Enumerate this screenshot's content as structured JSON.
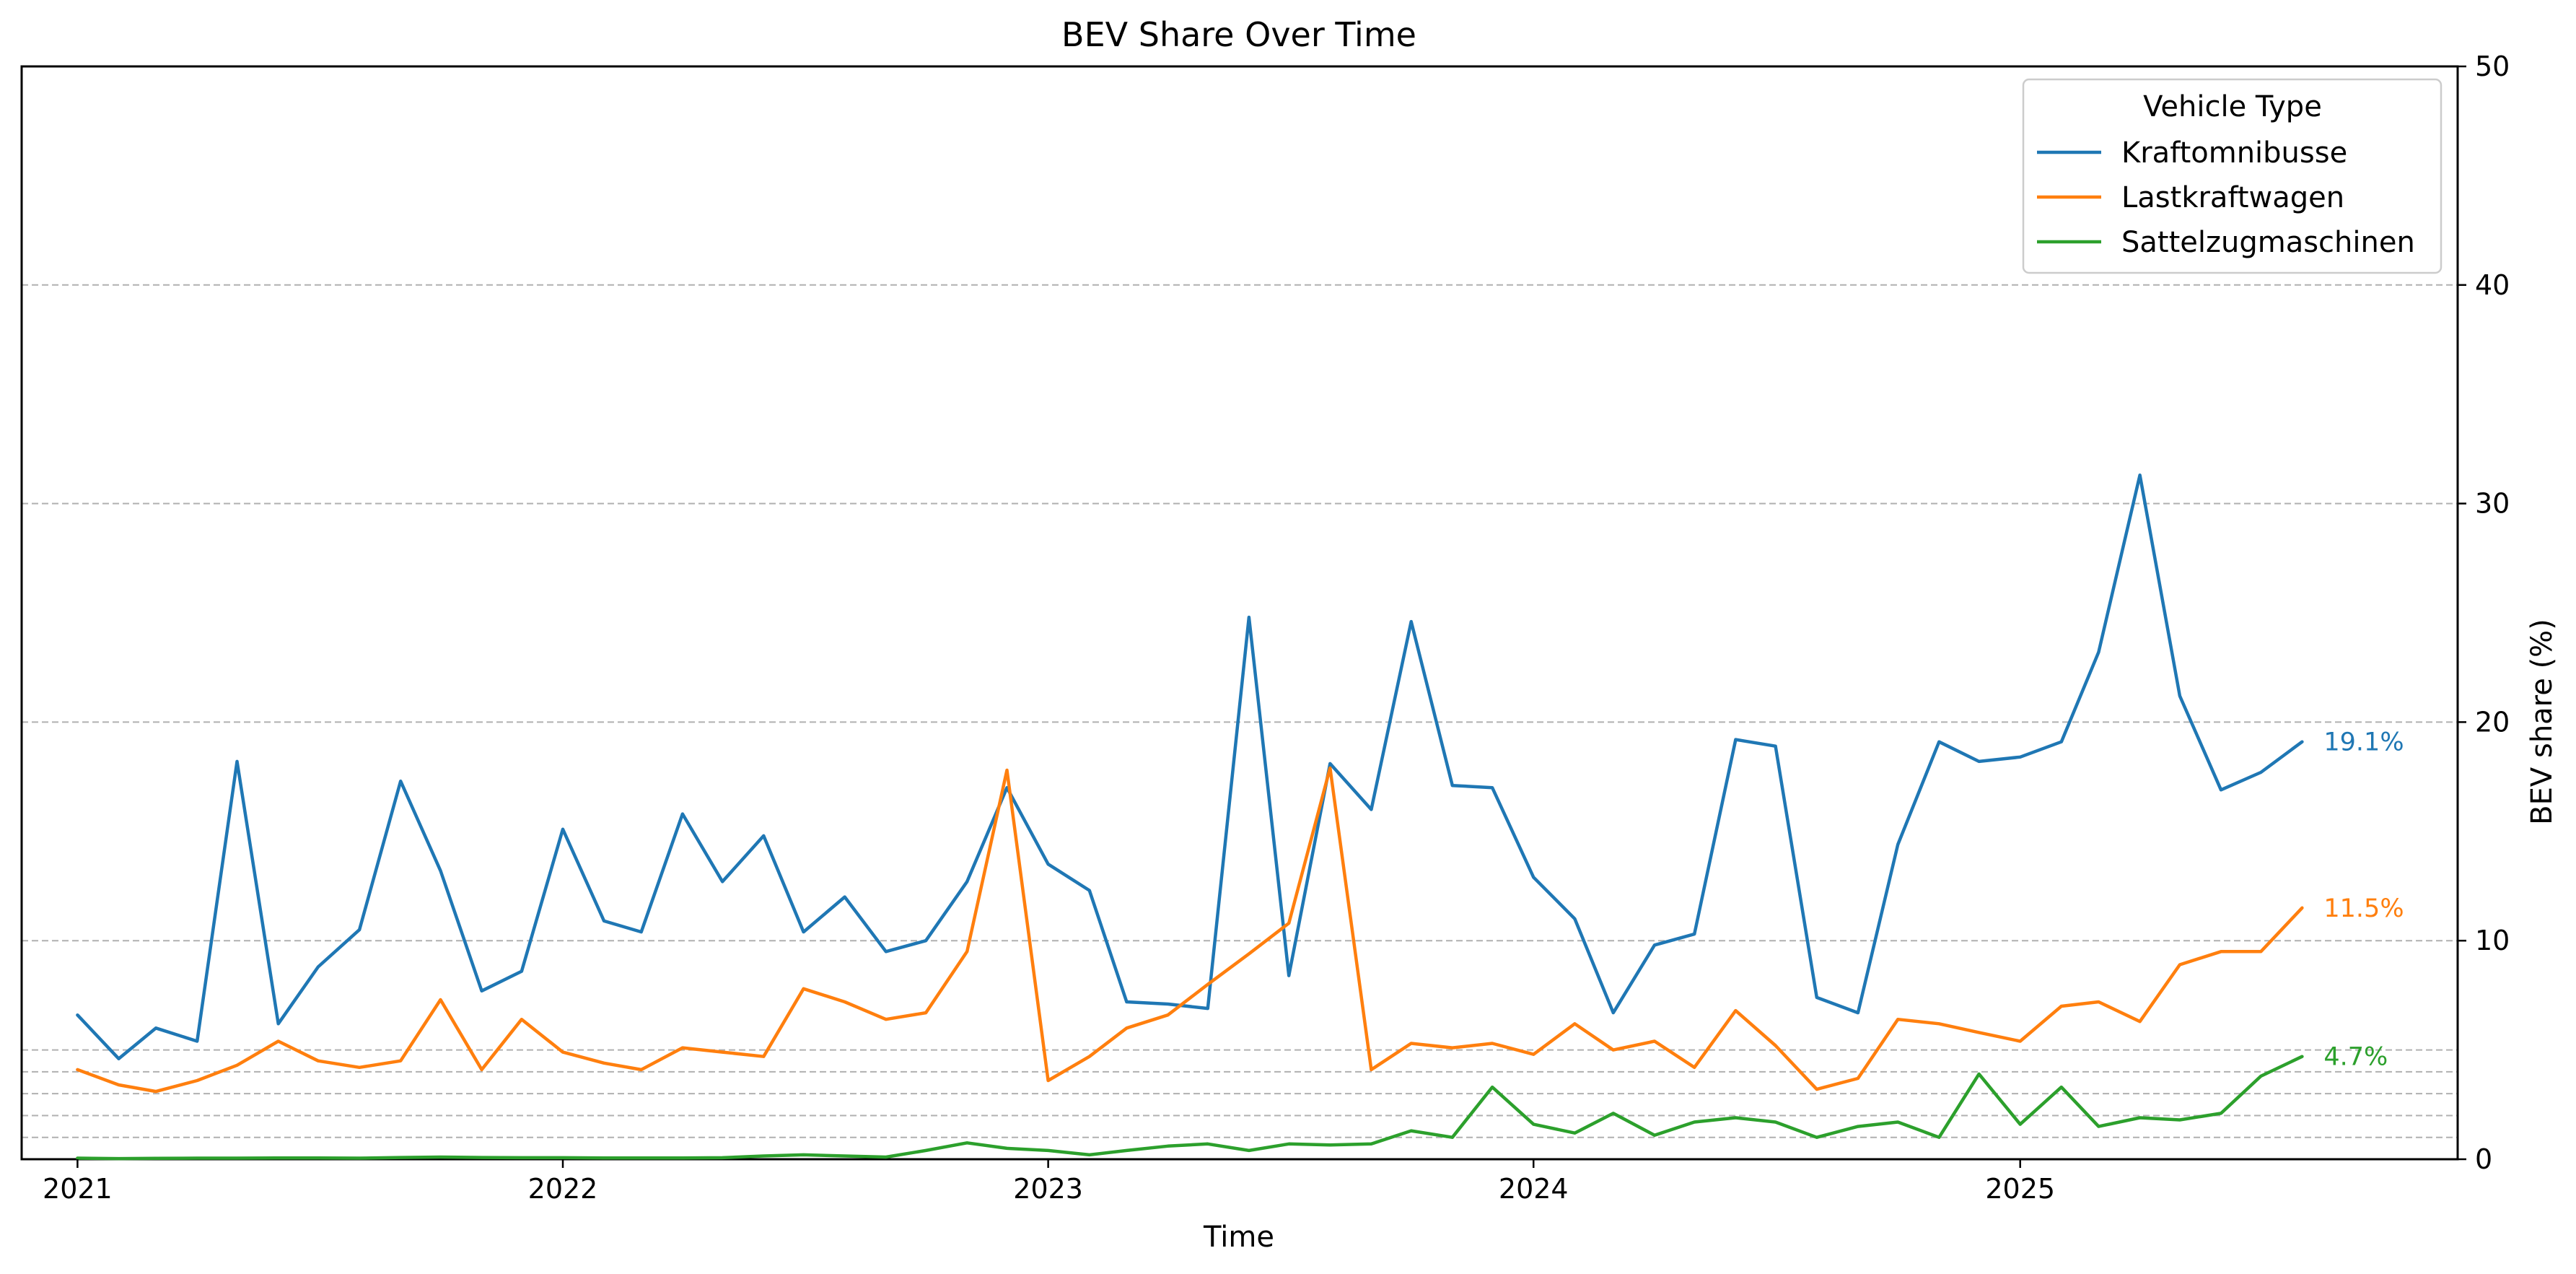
{
  "chart_data": {
    "type": "line",
    "title": "BEV Share Over Time",
    "xlabel": "Time",
    "ylabel": "BEV share (%)",
    "y_axis_side": "right",
    "ylim": [
      0,
      50
    ],
    "yticks": [
      0,
      10,
      20,
      30,
      40,
      50
    ],
    "xlim": [
      "2020-11-20",
      "2025-11-26"
    ],
    "xticks": [
      {
        "date": "2021-01-01",
        "label": "2021"
      },
      {
        "date": "2022-01-01",
        "label": "2022"
      },
      {
        "date": "2023-01-01",
        "label": "2023"
      },
      {
        "date": "2024-01-01",
        "label": "2024"
      },
      {
        "date": "2025-01-01",
        "label": "2025"
      }
    ],
    "grid": {
      "axis": "y",
      "style": "dashed",
      "color": "#b0b0b0",
      "extra_lines_at": [
        1,
        2,
        3,
        4,
        5
      ]
    },
    "legend": {
      "title": "Vehicle Type",
      "position": "top-right"
    },
    "x": [
      "2021-01",
      "2021-02",
      "2021-03",
      "2021-04",
      "2021-05",
      "2021-06",
      "2021-07",
      "2021-08",
      "2021-09",
      "2021-10",
      "2021-11",
      "2021-12",
      "2022-01",
      "2022-02",
      "2022-03",
      "2022-04",
      "2022-05",
      "2022-06",
      "2022-07",
      "2022-08",
      "2022-09",
      "2022-10",
      "2022-11",
      "2022-12",
      "2023-01",
      "2023-02",
      "2023-03",
      "2023-04",
      "2023-05",
      "2023-06",
      "2023-07",
      "2023-08",
      "2023-09",
      "2023-10",
      "2023-11",
      "2023-12",
      "2024-01",
      "2024-02",
      "2024-03",
      "2024-04",
      "2024-05",
      "2024-06",
      "2024-07",
      "2024-08",
      "2024-09",
      "2024-10",
      "2024-11",
      "2024-12",
      "2025-01",
      "2025-02",
      "2025-03",
      "2025-04",
      "2025-05",
      "2025-06",
      "2025-07",
      "2025-08"
    ],
    "series": [
      {
        "name": "Kraftomnibusse",
        "color": "#1f77b4",
        "end_label": "19.1%",
        "values": [
          6.6,
          4.6,
          6.0,
          5.4,
          18.2,
          6.2,
          8.8,
          10.5,
          17.3,
          13.2,
          7.7,
          8.6,
          15.1,
          10.9,
          10.4,
          15.8,
          12.7,
          14.8,
          10.4,
          12.0,
          9.5,
          10.0,
          12.7,
          17.0,
          13.5,
          12.3,
          7.2,
          7.1,
          6.9,
          24.8,
          8.4,
          18.1,
          16.0,
          24.6,
          17.1,
          17.0,
          12.9,
          11.0,
          6.7,
          9.8,
          10.3,
          19.2,
          18.9,
          7.4,
          6.7,
          14.4,
          19.1,
          18.2,
          18.4,
          19.1,
          23.2,
          31.3,
          21.2,
          16.9,
          17.7,
          19.1
        ]
      },
      {
        "name": "Lastkraftwagen",
        "color": "#ff7f0e",
        "end_label": "11.5%",
        "values": [
          4.1,
          3.4,
          3.1,
          3.6,
          4.3,
          5.4,
          4.5,
          4.2,
          4.5,
          7.3,
          4.1,
          6.4,
          4.9,
          4.4,
          4.1,
          5.1,
          4.9,
          4.7,
          7.8,
          7.2,
          6.4,
          6.7,
          9.5,
          17.8,
          3.6,
          4.7,
          6.0,
          6.6,
          8.0,
          9.4,
          10.8,
          17.9,
          4.1,
          5.3,
          5.1,
          5.3,
          4.8,
          6.2,
          5.0,
          5.4,
          4.2,
          6.8,
          5.2,
          3.2,
          3.7,
          6.4,
          6.2,
          5.8,
          5.4,
          7.0,
          7.2,
          6.3,
          8.9,
          9.5,
          9.5,
          11.5
        ]
      },
      {
        "name": "Sattelzugmaschinen",
        "color": "#2ca02c",
        "end_label": "4.7%",
        "values": [
          0.05,
          0.03,
          0.04,
          0.05,
          0.05,
          0.06,
          0.06,
          0.05,
          0.08,
          0.1,
          0.08,
          0.07,
          0.07,
          0.06,
          0.06,
          0.06,
          0.07,
          0.15,
          0.2,
          0.15,
          0.1,
          0.4,
          0.75,
          0.5,
          0.4,
          0.2,
          0.4,
          0.6,
          0.7,
          0.4,
          0.7,
          0.65,
          0.7,
          1.3,
          1.0,
          3.3,
          1.6,
          1.2,
          2.1,
          1.1,
          1.7,
          1.9,
          1.7,
          1.0,
          1.5,
          1.7,
          1.0,
          3.9,
          1.6,
          3.3,
          1.5,
          1.9,
          1.8,
          2.1,
          3.8,
          4.7
        ]
      }
    ]
  }
}
